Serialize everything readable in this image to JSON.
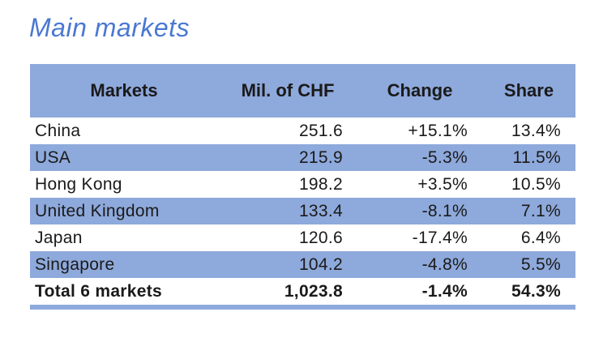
{
  "title": "Main markets",
  "table": {
    "headers": {
      "markets": "Markets",
      "chf": "Mil. of CHF",
      "change": "Change",
      "share": "Share"
    },
    "rows": [
      {
        "market": "China",
        "chf": "251.6",
        "change": "+15.1%",
        "share": "13.4%"
      },
      {
        "market": "USA",
        "chf": "215.9",
        "change": "-5.3%",
        "share": "11.5%"
      },
      {
        "market": "Hong Kong",
        "chf": "198.2",
        "change": "+3.5%",
        "share": "10.5%"
      },
      {
        "market": "United Kingdom",
        "chf": "133.4",
        "change": "-8.1%",
        "share": "7.1%"
      },
      {
        "market": "Japan",
        "chf": "120.6",
        "change": "-17.4%",
        "share": "6.4%"
      },
      {
        "market": "Singapore",
        "chf": "104.2",
        "change": "-4.8%",
        "share": "5.5%"
      }
    ],
    "total_row": {
      "market": "Total 6 markets",
      "chf": "1,023.8",
      "change": "-1.4%",
      "share": "54.3%"
    }
  },
  "colors": {
    "band_blue": "#8EA9DB",
    "title_blue": "#4A78D2",
    "text": "#1A1A1A"
  },
  "chart_data": {
    "type": "table",
    "title": "Main markets",
    "columns": [
      "Markets",
      "Mil. of CHF",
      "Change",
      "Share"
    ],
    "rows": [
      [
        "China",
        251.6,
        "+15.1%",
        "13.4%"
      ],
      [
        "USA",
        215.9,
        "-5.3%",
        "11.5%"
      ],
      [
        "Hong Kong",
        198.2,
        "+3.5%",
        "10.5%"
      ],
      [
        "United Kingdom",
        133.4,
        "-8.1%",
        "7.1%"
      ],
      [
        "Japan",
        120.6,
        "-17.4%",
        "6.4%"
      ],
      [
        "Singapore",
        104.2,
        "-4.8%",
        "5.5%"
      ],
      [
        "Total 6 markets",
        1023.8,
        "-1.4%",
        "54.3%"
      ]
    ],
    "layout": {
      "banded_rows": true,
      "band_color": "#8EA9DB",
      "total_row_bold": true
    }
  }
}
